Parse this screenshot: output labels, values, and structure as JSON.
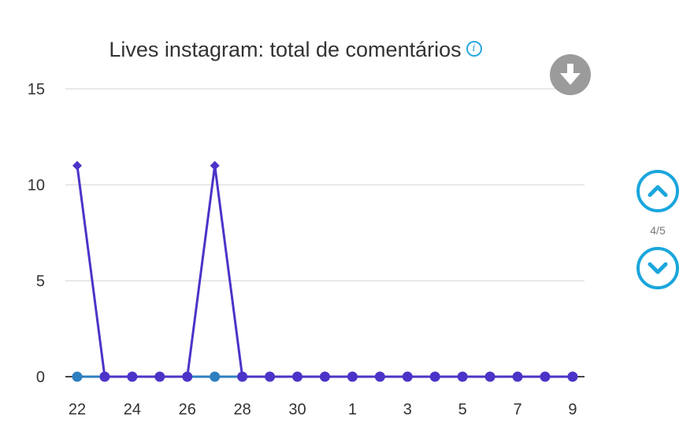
{
  "title": "Lives instagram: total de comentários",
  "icons": {
    "info": "info-icon",
    "download": "download-icon",
    "up": "chevron-up-icon",
    "down": "chevron-down-icon"
  },
  "pager": {
    "current": 4,
    "total": 5,
    "label": "4/5"
  },
  "colors": {
    "series_main": "#4a34c8",
    "series_secondary": "#2e7fc0",
    "accent": "#1aa6dc",
    "download_bg": "#9b9b9b",
    "grid": "#e2e2e2",
    "axis_text": "#333333"
  },
  "chart_data": {
    "type": "line",
    "title": "Lives instagram: total de comentários",
    "x_ticks": [
      "22",
      "24",
      "26",
      "28",
      "30",
      "1",
      "3",
      "5",
      "7",
      "9"
    ],
    "x": [
      "22",
      "23",
      "24",
      "25",
      "26",
      "27",
      "28",
      "29",
      "30",
      "31",
      "1",
      "2",
      "3",
      "4",
      "5",
      "6",
      "7",
      "8",
      "9"
    ],
    "y_ticks": [
      0,
      5,
      10,
      15
    ],
    "ylim": [
      0,
      15
    ],
    "grid": true,
    "series": [
      {
        "values": [
          11,
          0,
          0,
          0,
          0,
          11,
          0,
          0,
          0,
          0,
          0,
          0,
          0,
          0,
          0,
          0,
          0,
          0,
          0
        ]
      },
      {
        "values": [
          0,
          0,
          0,
          0,
          0,
          0,
          0,
          0,
          0,
          0,
          0,
          0,
          0,
          0,
          0,
          0,
          0,
          0,
          0
        ]
      }
    ]
  }
}
